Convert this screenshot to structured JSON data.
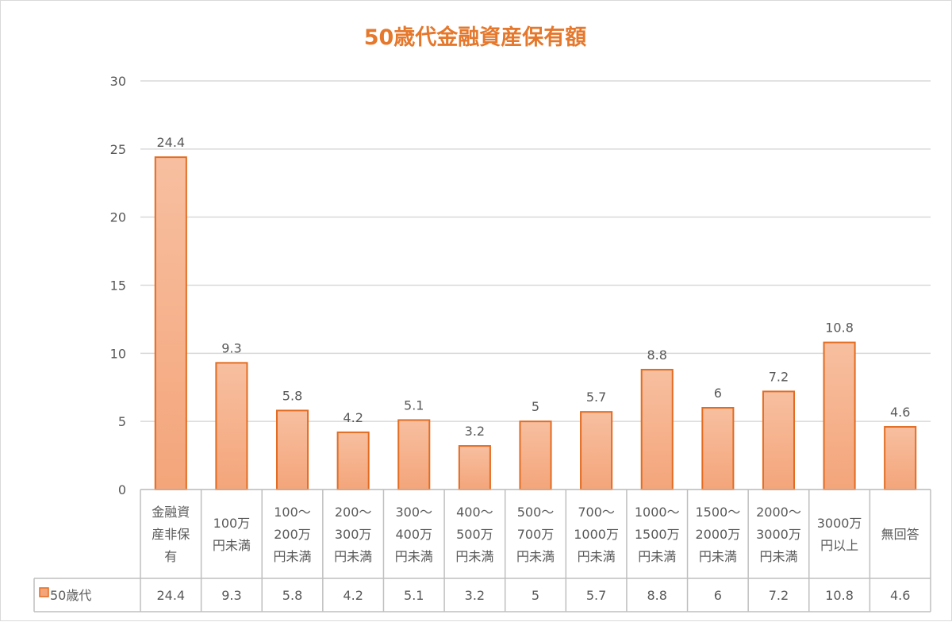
{
  "chart_data": {
    "type": "bar",
    "title": "50歳代金融資産保有額",
    "categories": [
      [
        "金融資",
        "産非保",
        "有"
      ],
      [
        "100万",
        "円未満"
      ],
      [
        "100～",
        "200万",
        "円未満"
      ],
      [
        "200～",
        "300万",
        "円未満"
      ],
      [
        "300～",
        "400万",
        "円未満"
      ],
      [
        "400～",
        "500万",
        "円未満"
      ],
      [
        "500～",
        "700万",
        "円未満"
      ],
      [
        "700～",
        "1000万",
        "円未満"
      ],
      [
        "1000～",
        "1500万",
        "円未満"
      ],
      [
        "1500～",
        "2000万",
        "円未満"
      ],
      [
        "2000～",
        "3000万",
        "円未満"
      ],
      [
        "3000万",
        "円以上"
      ],
      [
        "無回答"
      ]
    ],
    "series": [
      {
        "name": "50歳代",
        "values": [
          24.4,
          9.3,
          5.8,
          4.2,
          5.1,
          3.2,
          5,
          5.7,
          8.8,
          6,
          7.2,
          10.8,
          4.6
        ],
        "labels": [
          "24.4",
          "9.3",
          "5.8",
          "4.2",
          "5.1",
          "3.2",
          "5",
          "5.7",
          "8.8",
          "6",
          "7.2",
          "10.8",
          "4.6"
        ],
        "color": "#f4a57a",
        "border": "#e36c22"
      }
    ],
    "ylim": [
      0,
      30
    ],
    "yticks": [
      0,
      5,
      10,
      15,
      20,
      25,
      30
    ],
    "grid": true,
    "data_table": true,
    "colors": {
      "title": "#e5782c",
      "grid": "#d9d9d9",
      "text": "#595959"
    }
  }
}
